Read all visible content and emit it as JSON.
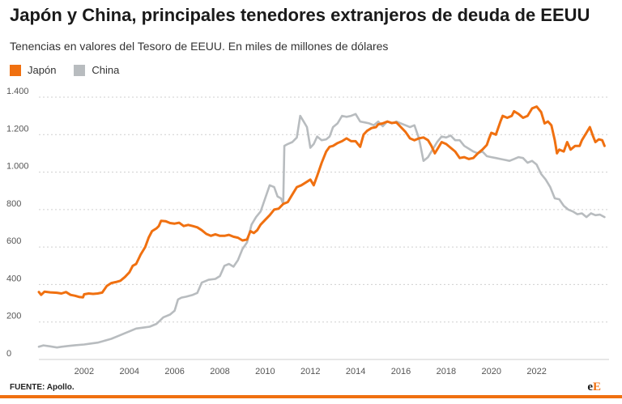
{
  "chart_data": {
    "type": "line",
    "title": "Japón y China, principales tenedores extranjeros de deuda de EEUU",
    "subtitle": "Tenencias en valores del Tesoro de EEUU. En miles de millones de dólares",
    "xlabel": "",
    "ylabel": "",
    "ylim": [
      0,
      1400
    ],
    "xlim": [
      2000,
      2025.2
    ],
    "yticks": [
      0,
      200,
      400,
      600,
      800,
      1000,
      1200,
      1400
    ],
    "ytick_labels": [
      "0",
      "200",
      "400",
      "600",
      "800",
      "1.000",
      "1.200",
      "1.400"
    ],
    "xticks": [
      2002,
      2004,
      2006,
      2008,
      2010,
      2012,
      2014,
      2016,
      2018,
      2020,
      2022
    ],
    "xtick_labels": [
      "2002",
      "2004",
      "2006",
      "2008",
      "2010",
      "2012",
      "2014",
      "2016",
      "2018",
      "2020",
      "2022"
    ],
    "grid": true,
    "legend_position": "top-left",
    "series": [
      {
        "name": "Japón",
        "color": "#f07010",
        "points": [
          [
            2000.0,
            360
          ],
          [
            2000.1,
            345
          ],
          [
            2000.25,
            362
          ],
          [
            2000.5,
            358
          ],
          [
            2000.8,
            356
          ],
          [
            2001.0,
            352
          ],
          [
            2001.2,
            360
          ],
          [
            2001.4,
            345
          ],
          [
            2001.6,
            340
          ],
          [
            2001.8,
            333
          ],
          [
            2001.95,
            332
          ],
          [
            2002.0,
            348
          ],
          [
            2002.2,
            352
          ],
          [
            2002.4,
            350
          ],
          [
            2002.6,
            352
          ],
          [
            2002.8,
            357
          ],
          [
            2003.0,
            392
          ],
          [
            2003.2,
            408
          ],
          [
            2003.4,
            413
          ],
          [
            2003.6,
            420
          ],
          [
            2003.8,
            440
          ],
          [
            2004.0,
            465
          ],
          [
            2004.15,
            500
          ],
          [
            2004.3,
            510
          ],
          [
            2004.5,
            560
          ],
          [
            2004.7,
            600
          ],
          [
            2004.85,
            650
          ],
          [
            2005.0,
            685
          ],
          [
            2005.2,
            700
          ],
          [
            2005.3,
            712
          ],
          [
            2005.4,
            740
          ],
          [
            2005.6,
            738
          ],
          [
            2005.8,
            728
          ],
          [
            2006.0,
            725
          ],
          [
            2006.2,
            730
          ],
          [
            2006.4,
            712
          ],
          [
            2006.6,
            718
          ],
          [
            2006.8,
            712
          ],
          [
            2007.0,
            705
          ],
          [
            2007.2,
            690
          ],
          [
            2007.4,
            670
          ],
          [
            2007.6,
            660
          ],
          [
            2007.8,
            668
          ],
          [
            2008.0,
            660
          ],
          [
            2008.2,
            660
          ],
          [
            2008.4,
            665
          ],
          [
            2008.6,
            655
          ],
          [
            2008.8,
            650
          ],
          [
            2009.0,
            635
          ],
          [
            2009.2,
            640
          ],
          [
            2009.35,
            685
          ],
          [
            2009.5,
            675
          ],
          [
            2009.65,
            690
          ],
          [
            2009.8,
            720
          ],
          [
            2010.0,
            745
          ],
          [
            2010.2,
            770
          ],
          [
            2010.4,
            800
          ],
          [
            2010.6,
            805
          ],
          [
            2010.8,
            830
          ],
          [
            2011.0,
            840
          ],
          [
            2011.2,
            880
          ],
          [
            2011.4,
            920
          ],
          [
            2011.6,
            930
          ],
          [
            2011.8,
            945
          ],
          [
            2012.0,
            960
          ],
          [
            2012.15,
            930
          ],
          [
            2012.3,
            980
          ],
          [
            2012.5,
            1050
          ],
          [
            2012.7,
            1110
          ],
          [
            2012.85,
            1135
          ],
          [
            2013.0,
            1140
          ],
          [
            2013.2,
            1155
          ],
          [
            2013.4,
            1165
          ],
          [
            2013.6,
            1180
          ],
          [
            2013.8,
            1165
          ],
          [
            2014.0,
            1165
          ],
          [
            2014.2,
            1135
          ],
          [
            2014.35,
            1200
          ],
          [
            2014.5,
            1220
          ],
          [
            2014.7,
            1235
          ],
          [
            2014.9,
            1240
          ],
          [
            2015.0,
            1255
          ],
          [
            2015.2,
            1260
          ],
          [
            2015.4,
            1270
          ],
          [
            2015.6,
            1262
          ],
          [
            2015.8,
            1265
          ],
          [
            2016.0,
            1240
          ],
          [
            2016.2,
            1215
          ],
          [
            2016.4,
            1180
          ],
          [
            2016.6,
            1170
          ],
          [
            2016.8,
            1180
          ],
          [
            2017.0,
            1185
          ],
          [
            2017.2,
            1170
          ],
          [
            2017.35,
            1140
          ],
          [
            2017.5,
            1100
          ],
          [
            2017.65,
            1130
          ],
          [
            2017.8,
            1160
          ],
          [
            2018.0,
            1150
          ],
          [
            2018.2,
            1130
          ],
          [
            2018.4,
            1110
          ],
          [
            2018.6,
            1075
          ],
          [
            2018.8,
            1080
          ],
          [
            2019.0,
            1070
          ],
          [
            2019.2,
            1075
          ],
          [
            2019.4,
            1100
          ],
          [
            2019.6,
            1120
          ],
          [
            2019.8,
            1145
          ],
          [
            2019.9,
            1180
          ],
          [
            2020.0,
            1210
          ],
          [
            2020.2,
            1200
          ],
          [
            2020.4,
            1270
          ],
          [
            2020.5,
            1300
          ],
          [
            2020.7,
            1290
          ],
          [
            2020.9,
            1300
          ],
          [
            2021.0,
            1325
          ],
          [
            2021.2,
            1310
          ],
          [
            2021.4,
            1290
          ],
          [
            2021.6,
            1300
          ],
          [
            2021.8,
            1340
          ],
          [
            2022.0,
            1350
          ],
          [
            2022.2,
            1320
          ],
          [
            2022.35,
            1260
          ],
          [
            2022.5,
            1270
          ],
          [
            2022.65,
            1250
          ],
          [
            2022.8,
            1170
          ],
          [
            2022.9,
            1100
          ],
          [
            2023.0,
            1120
          ],
          [
            2023.2,
            1110
          ],
          [
            2023.35,
            1160
          ],
          [
            2023.5,
            1120
          ],
          [
            2023.7,
            1140
          ],
          [
            2023.9,
            1140
          ],
          [
            2024.0,
            1170
          ],
          [
            2024.2,
            1210
          ],
          [
            2024.35,
            1240
          ],
          [
            2024.5,
            1190
          ],
          [
            2024.6,
            1160
          ],
          [
            2024.75,
            1175
          ],
          [
            2024.9,
            1170
          ],
          [
            2025.0,
            1140
          ]
        ]
      },
      {
        "name": "China",
        "color": "#b8bcbf",
        "points": [
          [
            2000.0,
            68
          ],
          [
            2000.2,
            75
          ],
          [
            2000.5,
            70
          ],
          [
            2000.8,
            64
          ],
          [
            2001.0,
            68
          ],
          [
            2001.3,
            72
          ],
          [
            2001.6,
            76
          ],
          [
            2002.0,
            80
          ],
          [
            2002.3,
            85
          ],
          [
            2002.6,
            90
          ],
          [
            2002.9,
            100
          ],
          [
            2003.2,
            110
          ],
          [
            2003.5,
            125
          ],
          [
            2003.8,
            140
          ],
          [
            2004.0,
            150
          ],
          [
            2004.3,
            165
          ],
          [
            2004.6,
            170
          ],
          [
            2004.9,
            175
          ],
          [
            2005.2,
            190
          ],
          [
            2005.5,
            225
          ],
          [
            2005.8,
            240
          ],
          [
            2006.0,
            260
          ],
          [
            2006.15,
            320
          ],
          [
            2006.3,
            330
          ],
          [
            2006.5,
            335
          ],
          [
            2006.8,
            345
          ],
          [
            2007.0,
            355
          ],
          [
            2007.2,
            410
          ],
          [
            2007.5,
            425
          ],
          [
            2007.8,
            430
          ],
          [
            2008.0,
            445
          ],
          [
            2008.2,
            500
          ],
          [
            2008.4,
            510
          ],
          [
            2008.6,
            495
          ],
          [
            2008.8,
            530
          ],
          [
            2009.0,
            590
          ],
          [
            2009.2,
            625
          ],
          [
            2009.4,
            720
          ],
          [
            2009.6,
            760
          ],
          [
            2009.8,
            790
          ],
          [
            2010.0,
            860
          ],
          [
            2010.2,
            930
          ],
          [
            2010.4,
            920
          ],
          [
            2010.55,
            870
          ],
          [
            2010.7,
            860
          ],
          [
            2010.8,
            830
          ],
          [
            2010.85,
            1140
          ],
          [
            2011.0,
            1150
          ],
          [
            2011.2,
            1160
          ],
          [
            2011.4,
            1185
          ],
          [
            2011.55,
            1300
          ],
          [
            2011.7,
            1270
          ],
          [
            2011.85,
            1240
          ],
          [
            2012.0,
            1130
          ],
          [
            2012.15,
            1150
          ],
          [
            2012.3,
            1190
          ],
          [
            2012.5,
            1170
          ],
          [
            2012.7,
            1175
          ],
          [
            2012.85,
            1190
          ],
          [
            2013.0,
            1240
          ],
          [
            2013.2,
            1260
          ],
          [
            2013.4,
            1300
          ],
          [
            2013.6,
            1295
          ],
          [
            2013.8,
            1300
          ],
          [
            2014.0,
            1310
          ],
          [
            2014.2,
            1270
          ],
          [
            2014.4,
            1265
          ],
          [
            2014.6,
            1260
          ],
          [
            2014.8,
            1250
          ],
          [
            2015.0,
            1270
          ],
          [
            2015.2,
            1245
          ],
          [
            2015.4,
            1270
          ],
          [
            2015.6,
            1260
          ],
          [
            2015.8,
            1270
          ],
          [
            2016.0,
            1260
          ],
          [
            2016.2,
            1250
          ],
          [
            2016.4,
            1240
          ],
          [
            2016.6,
            1250
          ],
          [
            2016.8,
            1180
          ],
          [
            2017.0,
            1060
          ],
          [
            2017.2,
            1080
          ],
          [
            2017.4,
            1120
          ],
          [
            2017.6,
            1160
          ],
          [
            2017.8,
            1190
          ],
          [
            2018.0,
            1185
          ],
          [
            2018.2,
            1195
          ],
          [
            2018.4,
            1170
          ],
          [
            2018.6,
            1170
          ],
          [
            2018.8,
            1140
          ],
          [
            2019.0,
            1125
          ],
          [
            2019.2,
            1110
          ],
          [
            2019.4,
            1100
          ],
          [
            2019.6,
            1110
          ],
          [
            2019.8,
            1085
          ],
          [
            2020.0,
            1080
          ],
          [
            2020.2,
            1075
          ],
          [
            2020.4,
            1070
          ],
          [
            2020.6,
            1065
          ],
          [
            2020.8,
            1060
          ],
          [
            2021.0,
            1070
          ],
          [
            2021.2,
            1080
          ],
          [
            2021.4,
            1075
          ],
          [
            2021.6,
            1050
          ],
          [
            2021.8,
            1060
          ],
          [
            2022.0,
            1040
          ],
          [
            2022.2,
            990
          ],
          [
            2022.4,
            960
          ],
          [
            2022.6,
            920
          ],
          [
            2022.8,
            860
          ],
          [
            2023.0,
            855
          ],
          [
            2023.2,
            820
          ],
          [
            2023.4,
            800
          ],
          [
            2023.6,
            790
          ],
          [
            2023.8,
            775
          ],
          [
            2024.0,
            780
          ],
          [
            2024.2,
            760
          ],
          [
            2024.4,
            780
          ],
          [
            2024.6,
            770
          ],
          [
            2024.8,
            773
          ],
          [
            2025.0,
            760
          ]
        ]
      }
    ],
    "source": "FUENTE: Apollo."
  },
  "logo": {
    "prefix": "e",
    "suffix": "E"
  }
}
